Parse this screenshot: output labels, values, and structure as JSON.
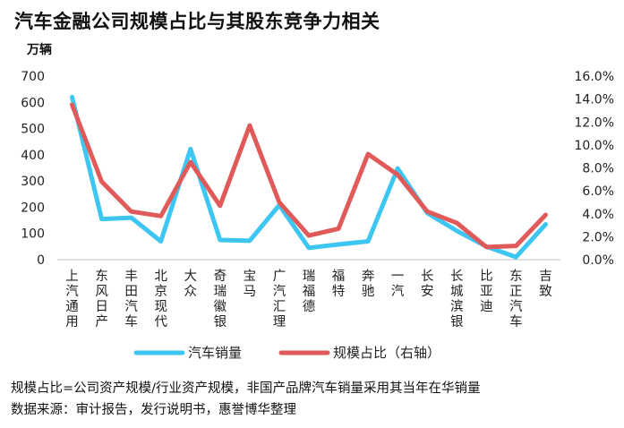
{
  "title": "汽车金融公司规模占比与其股东竞争力相关",
  "unit_label": "万辆",
  "chart_data": {
    "type": "line",
    "categories": [
      "上汽通用",
      "东风日产",
      "丰田汽车",
      "北京现代",
      "大众",
      "奇瑞徽银",
      "宝马",
      "广汽汇理",
      "瑞福德",
      "福特",
      "奔驰",
      "一汽",
      "长安",
      "长城滨银",
      "比亚迪",
      "东正汽车",
      "吉致"
    ],
    "series": [
      {
        "name": "汽车销量",
        "axis": "left",
        "color": "#3ec6f2",
        "values": [
          620,
          155,
          160,
          70,
          422,
          75,
          72,
          208,
          45,
          58,
          70,
          348,
          178,
          110,
          50,
          10,
          135
        ]
      },
      {
        "name": "规模占比（右轴）",
        "axis": "right",
        "color": "#e05a5a",
        "values": [
          13.5,
          6.8,
          4.2,
          3.8,
          8.5,
          4.7,
          11.7,
          5.0,
          2.1,
          2.7,
          9.2,
          7.4,
          4.2,
          3.2,
          1.1,
          1.2,
          3.9
        ]
      }
    ],
    "y_left": {
      "ylim": [
        0,
        700
      ],
      "ticks": [
        "0",
        "100",
        "200",
        "300",
        "400",
        "500",
        "600",
        "700"
      ]
    },
    "y_right": {
      "ylim": [
        0,
        16
      ],
      "ticks": [
        "0.0%",
        "2.0%",
        "4.0%",
        "6.0%",
        "8.0%",
        "10.0%",
        "12.0%",
        "14.0%",
        "16.0%"
      ]
    },
    "legend_position": "bottom",
    "grid": false
  },
  "footnotes": {
    "line1": "规模占比=公司资产规模/行业资产规模，非国产品牌汽车销量采用其当年在华销量",
    "line2": "数据来源：审计报告，发行说明书，惠誉博华整理"
  }
}
